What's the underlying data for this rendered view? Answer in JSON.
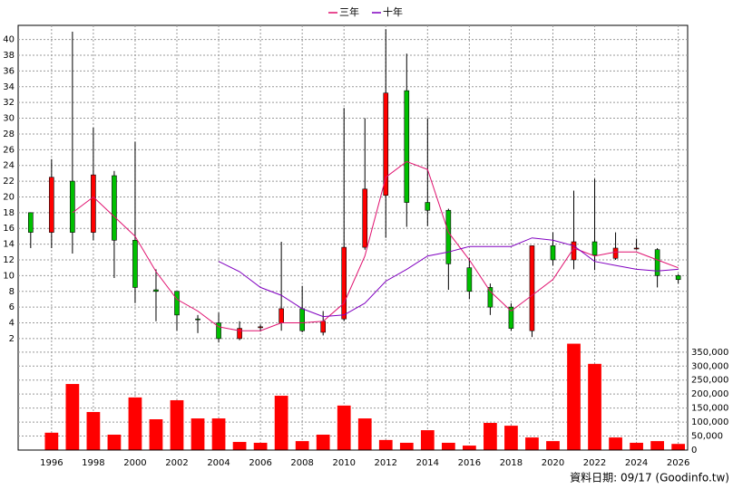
{
  "chart_data": {
    "type": "candlestick",
    "x": [
      1995,
      1996,
      1997,
      1998,
      1999,
      2000,
      2001,
      2002,
      2003,
      2004,
      2005,
      2006,
      2007,
      2008,
      2009,
      2010,
      2011,
      2012,
      2013,
      2014,
      2015,
      2016,
      2017,
      2018,
      2019,
      2020,
      2021,
      2022,
      2023,
      2024,
      2025,
      2026
    ],
    "open": [
      18,
      15.5,
      22,
      15.5,
      22.7,
      14.5,
      8.2,
      8,
      4.5,
      4,
      2,
      3.5,
      4,
      5.8,
      2.8,
      4.5,
      13.6,
      20.2,
      33.5,
      19.3,
      18.3,
      11,
      8.5,
      6,
      3,
      13.8,
      12,
      14.3,
      12.2,
      13.5,
      13.3,
      10
    ],
    "high": [
      18,
      24.8,
      41,
      28.8,
      23.3,
      27,
      10.8,
      8,
      5,
      5.3,
      4.2,
      3.8,
      14.3,
      8.7,
      5.5,
      31.3,
      30,
      41.3,
      38.2,
      30,
      18.5,
      12.2,
      9,
      6.5,
      13.8,
      15.5,
      20.8,
      22.3,
      15.5,
      14.7,
      13.5,
      10.2
    ],
    "low": [
      13.5,
      13.5,
      12.8,
      14.5,
      9.7,
      6.5,
      4.2,
      3,
      2.7,
      1.5,
      1.8,
      2.9,
      3,
      2.8,
      2.4,
      4.2,
      13.3,
      14.8,
      16.2,
      16.3,
      8.2,
      7,
      5,
      3,
      2.2,
      11.3,
      10.8,
      10.7,
      12,
      13.3,
      8.5,
      9
    ],
    "close": [
      15.5,
      22.5,
      15.5,
      22.8,
      14.5,
      8.5,
      8,
      5,
      4.4,
      2,
      3.3,
      3.5,
      5.8,
      3,
      4.2,
      13.6,
      21,
      33.2,
      19.3,
      18.3,
      11.5,
      8,
      6,
      3.3,
      13.8,
      12,
      14.3,
      12.6,
      13.5,
      13.5,
      10,
      9.5
    ],
    "up_color": "#ff0000",
    "down_color": "#00c000",
    "series": [
      {
        "name": "三年",
        "color": "#e0106e",
        "values": [
          null,
          null,
          18,
          20,
          17.5,
          15,
          10.5,
          7,
          5.5,
          3.5,
          3,
          3,
          4,
          4,
          4.2,
          6.5,
          12.5,
          22.5,
          24.5,
          23.5,
          15.5,
          12,
          8,
          5.5,
          7.5,
          9.5,
          13.5,
          12.5,
          13,
          13,
          12,
          11
        ]
      },
      {
        "name": "十年",
        "color": "#8000c0",
        "values": [
          null,
          null,
          null,
          null,
          null,
          null,
          null,
          null,
          null,
          11.8,
          10.5,
          8.5,
          7.5,
          5.8,
          4.8,
          5,
          6.5,
          9.3,
          10.8,
          12.5,
          13,
          13.7,
          13.7,
          13.7,
          14.8,
          14.5,
          13.8,
          11.8,
          11.3,
          10.8,
          10.6,
          10.8
        ]
      }
    ],
    "xlim": [
      1994.4,
      2026.45
    ],
    "xticks": [
      1996,
      1998,
      2000,
      2002,
      2004,
      2006,
      2008,
      2010,
      2012,
      2014,
      2016,
      2018,
      2020,
      2022,
      2024,
      2026
    ],
    "ylim": [
      1.3,
      41.8
    ],
    "yticks": [
      2,
      4,
      6,
      8,
      10,
      12,
      14,
      16,
      18,
      20,
      22,
      24,
      26,
      28,
      30,
      32,
      34,
      36,
      38,
      40
    ],
    "grid": true,
    "volume": {
      "color": "#ff0000",
      "values": [
        0,
        62000,
        236000,
        136000,
        55000,
        188000,
        110000,
        178000,
        113000,
        113000,
        29000,
        26000,
        194000,
        32000,
        55000,
        159000,
        113000,
        36000,
        26000,
        71000,
        26000,
        16000,
        97000,
        87000,
        45000,
        32000,
        380000,
        308000,
        45000,
        26000,
        32000,
        22000
      ],
      "ylim": [
        0,
        385000
      ],
      "yticks": [
        0,
        {
          "value": 50000,
          "label": "50,000"
        },
        {
          "value": 100000,
          "label": "100,000"
        },
        {
          "value": 150000,
          "label": "150,000"
        },
        {
          "value": 200000,
          "label": "200,000"
        },
        {
          "value": 250000,
          "label": "250,000"
        },
        {
          "value": 300000,
          "label": "300,000"
        },
        {
          "value": 350000,
          "label": "350,000"
        }
      ]
    },
    "source": "資料日期: 09/17 (Goodinfo.tw)"
  }
}
